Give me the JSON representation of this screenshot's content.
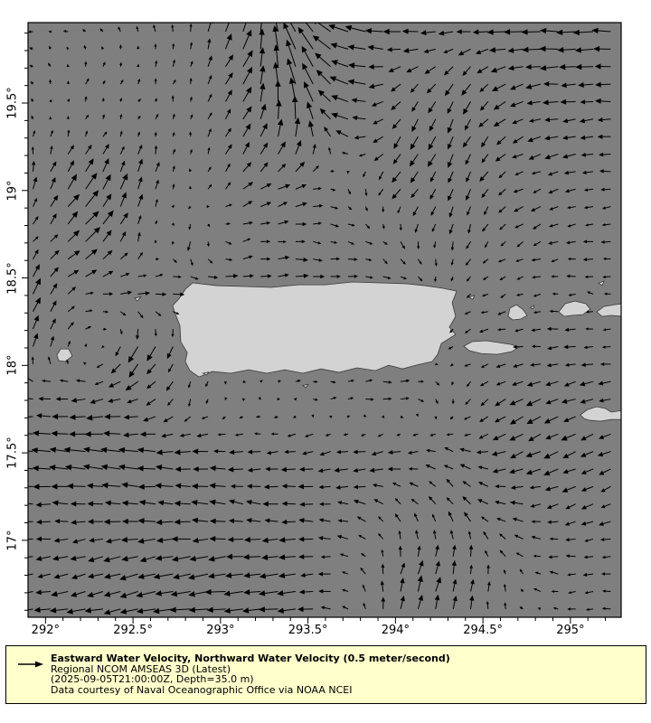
{
  "figure": {
    "background": "#ffffff"
  },
  "map": {
    "ocean_color": "#7f7f7f",
    "land_color": "#d3d3d3",
    "coast_color": "#3a3a3a",
    "arrow_color": "#000000",
    "frame_color": "#000000",
    "legend_bg": "#ffffcc"
  },
  "legend": {
    "title": "Eastward Water Velocity, Northward Water Velocity (0.5 meter/second)",
    "model": "Regional NCOM AMSEAS 3D (Latest)",
    "time_depth": "(2025-09-05T21:00:00Z, Depth=35.0 m)",
    "credit": "Data courtesy of Naval Oceanographic Office via NOAA NCEI",
    "reference_arrow": "right-arrow-icon"
  },
  "chart_data": {
    "type": "quiver-map",
    "region": "Puerto Rico / Virgin Islands",
    "lon_range": [
      291.9,
      295.29
    ],
    "lat_range": [
      16.56,
      19.96
    ],
    "vector_spacing_deg": 0.1,
    "minor_tick_deg": 0.1,
    "major_tick_deg": 0.5,
    "reference_vector": {
      "value": 0.5,
      "unit": "meter/second"
    },
    "x_ticks": [
      {
        "v": 292.0,
        "label": "292°"
      },
      {
        "v": 292.5,
        "label": "292.5°"
      },
      {
        "v": 293.0,
        "label": "293°"
      },
      {
        "v": 293.5,
        "label": "293.5°"
      },
      {
        "v": 294.0,
        "label": "294°"
      },
      {
        "v": 294.5,
        "label": "294.5°"
      },
      {
        "v": 295.0,
        "label": "295°"
      }
    ],
    "y_ticks": [
      {
        "v": 17.0,
        "label": "17°"
      },
      {
        "v": 17.5,
        "label": "17.5°"
      },
      {
        "v": 18.0,
        "label": "18°"
      },
      {
        "v": 18.5,
        "label": "18.5°"
      },
      {
        "v": 19.0,
        "label": "19°"
      },
      {
        "v": 19.5,
        "label": "19.5°"
      }
    ],
    "control_grid": {
      "lons": [
        291.9,
        292.21,
        292.52,
        292.83,
        293.14,
        293.45,
        293.76,
        294.07,
        294.38,
        294.69,
        295.0,
        295.31
      ],
      "lats": [
        19.96,
        19.65,
        19.34,
        19.03,
        18.72,
        18.41,
        18.1,
        17.79,
        17.48,
        17.17,
        16.86,
        16.56
      ],
      "u": [
        [
          -0.08,
          -0.1,
          -0.05,
          0.0,
          0.15,
          -0.35,
          -0.45,
          -0.4,
          -0.3,
          -0.4,
          -0.45,
          -0.4
        ],
        [
          -0.05,
          0.05,
          0.02,
          0.05,
          0.2,
          -0.2,
          -0.4,
          -0.2,
          -0.15,
          -0.3,
          -0.35,
          -0.3
        ],
        [
          0.0,
          0.05,
          0.05,
          0.0,
          0.15,
          0.0,
          -0.35,
          -0.15,
          -0.12,
          -0.25,
          -0.3,
          -0.28
        ],
        [
          0.02,
          0.25,
          0.1,
          0.0,
          0.2,
          0.25,
          0.05,
          -0.2,
          -0.1,
          -0.18,
          -0.22,
          -0.2
        ],
        [
          0.1,
          0.3,
          0.05,
          -0.05,
          0.2,
          0.2,
          0.15,
          0.05,
          -0.05,
          -0.15,
          -0.2,
          -0.2
        ],
        [
          0.15,
          0.2,
          0.25,
          0.3,
          0.3,
          0.3,
          0.25,
          0.15,
          -0.1,
          -0.15,
          -0.15,
          -0.15
        ],
        [
          0.08,
          0.05,
          -0.2,
          -0.1,
          0.15,
          0.2,
          0.2,
          0.2,
          -0.15,
          -0.2,
          -0.25,
          -0.2
        ],
        [
          -0.3,
          -0.3,
          -0.28,
          -0.05,
          0.0,
          0.05,
          0.15,
          0.2,
          -0.05,
          -0.3,
          -0.3,
          -0.25
        ],
        [
          -0.4,
          -0.45,
          -0.4,
          -0.35,
          -0.3,
          -0.3,
          -0.3,
          -0.3,
          -0.2,
          -0.3,
          -0.28,
          -0.25
        ],
        [
          -0.3,
          -0.32,
          -0.35,
          -0.35,
          -0.3,
          -0.3,
          -0.25,
          -0.1,
          -0.15,
          -0.25,
          -0.25,
          -0.22
        ],
        [
          -0.3,
          -0.3,
          -0.35,
          -0.4,
          -0.4,
          -0.35,
          -0.15,
          0.08,
          0.05,
          -0.1,
          -0.2,
          -0.2
        ],
        [
          -0.35,
          -0.4,
          -0.4,
          -0.45,
          -0.4,
          -0.4,
          -0.1,
          0.1,
          0.08,
          -0.05,
          -0.15,
          -0.2
        ]
      ],
      "v": [
        [
          0.02,
          0.05,
          0.1,
          0.2,
          0.45,
          0.55,
          0.1,
          0.05,
          0.0,
          0.0,
          0.0,
          0.0
        ],
        [
          0.05,
          0.1,
          0.08,
          0.15,
          0.35,
          0.6,
          0.1,
          -0.15,
          -0.25,
          -0.1,
          0.0,
          0.0
        ],
        [
          0.1,
          0.1,
          0.1,
          0.1,
          0.3,
          0.45,
          0.1,
          -0.3,
          -0.3,
          -0.12,
          -0.05,
          0.0
        ],
        [
          0.25,
          0.35,
          0.3,
          0.1,
          0.15,
          0.1,
          -0.15,
          -0.2,
          -0.25,
          -0.1,
          -0.05,
          0.0
        ],
        [
          0.1,
          0.3,
          0.2,
          -0.25,
          0.05,
          0.0,
          -0.05,
          -0.15,
          -0.2,
          -0.1,
          -0.05,
          0.0
        ],
        [
          0.35,
          0.05,
          0.0,
          0.0,
          0.02,
          0.0,
          0.0,
          -0.05,
          -0.1,
          -0.05,
          0.0,
          0.05
        ],
        [
          0.28,
          0.1,
          -0.35,
          -0.2,
          0.0,
          0.0,
          0.0,
          0.02,
          -0.05,
          0.0,
          -0.05,
          0.0
        ],
        [
          -0.02,
          -0.05,
          -0.08,
          -0.15,
          0.0,
          0.0,
          0.02,
          0.0,
          -0.15,
          -0.15,
          -0.1,
          -0.08
        ],
        [
          0.05,
          0.08,
          0.05,
          0.0,
          -0.02,
          -0.05,
          -0.05,
          -0.05,
          0.1,
          -0.12,
          -0.12,
          -0.1
        ],
        [
          0.0,
          0.0,
          0.0,
          0.05,
          0.05,
          0.0,
          0.05,
          0.15,
          0.2,
          0.05,
          -0.1,
          -0.08
        ],
        [
          -0.05,
          -0.08,
          -0.1,
          -0.1,
          -0.05,
          -0.05,
          0.05,
          0.3,
          0.25,
          0.1,
          0.0,
          0.0
        ],
        [
          -0.05,
          -0.05,
          -0.08,
          -0.05,
          -0.02,
          -0.05,
          0.1,
          0.35,
          0.3,
          0.1,
          0.0,
          -0.02
        ]
      ]
    },
    "islands": [
      {
        "name": "puerto-rico",
        "pts": [
          [
            292.841,
            18.472
          ],
          [
            292.98,
            18.456
          ],
          [
            293.135,
            18.451
          ],
          [
            293.29,
            18.446
          ],
          [
            293.445,
            18.461
          ],
          [
            293.6,
            18.461
          ],
          [
            293.755,
            18.477
          ],
          [
            293.91,
            18.472
          ],
          [
            294.065,
            18.467
          ],
          [
            294.169,
            18.456
          ],
          [
            294.272,
            18.441
          ],
          [
            294.35,
            18.425
          ],
          [
            294.324,
            18.358
          ],
          [
            294.344,
            18.28
          ],
          [
            294.308,
            18.218
          ],
          [
            294.344,
            18.177
          ],
          [
            294.262,
            18.125
          ],
          [
            294.241,
            18.063
          ],
          [
            294.21,
            18.022
          ],
          [
            294.117,
            18.001
          ],
          [
            294.04,
            17.98
          ],
          [
            293.962,
            18.001
          ],
          [
            293.885,
            17.97
          ],
          [
            293.781,
            17.986
          ],
          [
            293.678,
            17.96
          ],
          [
            293.574,
            17.98
          ],
          [
            293.471,
            17.955
          ],
          [
            293.368,
            17.975
          ],
          [
            293.264,
            17.955
          ],
          [
            293.161,
            17.975
          ],
          [
            293.058,
            17.955
          ],
          [
            292.954,
            17.965
          ],
          [
            292.877,
            17.934
          ],
          [
            292.825,
            17.97
          ],
          [
            292.799,
            18.022
          ],
          [
            292.81,
            18.073
          ],
          [
            292.773,
            18.135
          ],
          [
            292.768,
            18.228
          ],
          [
            292.737,
            18.306
          ],
          [
            292.727,
            18.342
          ],
          [
            292.764,
            18.383
          ],
          [
            292.799,
            18.435
          ]
        ]
      },
      {
        "name": "vieques",
        "pts": [
          [
            294.391,
            18.11
          ],
          [
            294.438,
            18.136
          ],
          [
            294.52,
            18.141
          ],
          [
            294.593,
            18.13
          ],
          [
            294.66,
            18.12
          ],
          [
            294.706,
            18.105
          ],
          [
            294.665,
            18.079
          ],
          [
            294.582,
            18.063
          ],
          [
            294.489,
            18.068
          ],
          [
            294.422,
            18.084
          ]
        ]
      },
      {
        "name": "culebra",
        "pts": [
          [
            294.644,
            18.28
          ],
          [
            294.654,
            18.327
          ],
          [
            294.691,
            18.347
          ],
          [
            294.727,
            18.321
          ],
          [
            294.753,
            18.285
          ],
          [
            294.716,
            18.265
          ],
          [
            294.67,
            18.26
          ]
        ]
      },
      {
        "name": "st-thomas",
        "pts": [
          [
            294.933,
            18.306
          ],
          [
            294.97,
            18.353
          ],
          [
            295.026,
            18.368
          ],
          [
            295.088,
            18.353
          ],
          [
            295.114,
            18.322
          ],
          [
            295.073,
            18.291
          ],
          [
            295.006,
            18.286
          ],
          [
            294.965,
            18.28
          ]
        ]
      },
      {
        "name": "st-john-tortola",
        "pts": [
          [
            295.15,
            18.306
          ],
          [
            295.192,
            18.337
          ],
          [
            295.254,
            18.347
          ],
          [
            295.3,
            18.353
          ],
          [
            295.3,
            18.28
          ],
          [
            295.233,
            18.286
          ],
          [
            295.181,
            18.28
          ]
        ]
      },
      {
        "name": "st-croix",
        "pts": [
          [
            295.057,
            17.717
          ],
          [
            295.099,
            17.748
          ],
          [
            295.15,
            17.764
          ],
          [
            295.202,
            17.753
          ],
          [
            295.233,
            17.733
          ],
          [
            295.3,
            17.743
          ],
          [
            295.3,
            17.691
          ],
          [
            295.233,
            17.691
          ],
          [
            295.171,
            17.681
          ],
          [
            295.109,
            17.686
          ],
          [
            295.078,
            17.696
          ]
        ]
      },
      {
        "name": "mona",
        "pts": [
          [
            292.065,
            18.058
          ],
          [
            292.086,
            18.094
          ],
          [
            292.133,
            18.094
          ],
          [
            292.153,
            18.053
          ],
          [
            292.112,
            18.022
          ],
          [
            292.076,
            18.027
          ]
        ]
      },
      {
        "name": "desecheo",
        "pts": [
          [
            292.51,
            18.385
          ],
          [
            292.545,
            18.392
          ],
          [
            292.525,
            18.368
          ]
        ]
      },
      {
        "name": "cay-south-1",
        "pts": [
          [
            292.9,
            17.955
          ],
          [
            292.932,
            17.962
          ],
          [
            292.92,
            17.944
          ]
        ]
      },
      {
        "name": "caja-de-muertos",
        "pts": [
          [
            293.47,
            17.885
          ],
          [
            293.502,
            17.892
          ],
          [
            293.487,
            17.873
          ]
        ]
      },
      {
        "name": "palominos",
        "pts": [
          [
            294.42,
            18.39
          ],
          [
            294.452,
            18.4
          ],
          [
            294.442,
            18.378
          ]
        ]
      },
      {
        "name": "culebrita",
        "pts": [
          [
            294.77,
            18.33
          ],
          [
            294.792,
            18.342
          ],
          [
            294.787,
            18.323
          ]
        ]
      },
      {
        "name": "cay-ne",
        "pts": [
          [
            295.16,
            18.47
          ],
          [
            295.192,
            18.482
          ],
          [
            295.182,
            18.458
          ]
        ]
      }
    ]
  }
}
